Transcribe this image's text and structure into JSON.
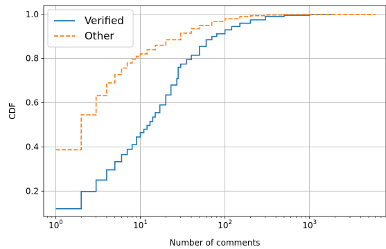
{
  "chart_data": {
    "type": "line",
    "xlabel": "Number of comments",
    "ylabel": "CDF",
    "xscale": "log",
    "xlim": [
      0.72,
      8000
    ],
    "ylim": [
      0.085,
      1.04
    ],
    "xticks": [
      {
        "value": 1,
        "base": "10",
        "exp": "0"
      },
      {
        "value": 10,
        "base": "10",
        "exp": "1"
      },
      {
        "value": 100,
        "base": "10",
        "exp": "2"
      },
      {
        "value": 1000,
        "base": "10",
        "exp": "3"
      }
    ],
    "yticks": [
      "0.2",
      "0.4",
      "0.6",
      "0.8",
      "1.0"
    ],
    "grid": true,
    "legend_position": "top-left",
    "series": [
      {
        "name": "Verified",
        "color": "#1f77b4",
        "style": "solid",
        "step": true,
        "x": [
          1,
          2,
          3,
          4,
          5,
          6,
          7,
          8,
          9,
          10,
          11,
          12,
          13,
          14,
          15,
          17,
          20,
          23,
          27,
          28,
          30,
          35,
          40,
          50,
          60,
          70,
          80,
          100,
          120,
          150,
          200,
          300,
          500,
          1000,
          2000
        ],
        "y": [
          0.12,
          0.198,
          0.25,
          0.296,
          0.333,
          0.365,
          0.389,
          0.41,
          0.445,
          0.465,
          0.48,
          0.497,
          0.515,
          0.535,
          0.555,
          0.59,
          0.635,
          0.68,
          0.71,
          0.76,
          0.775,
          0.795,
          0.815,
          0.855,
          0.885,
          0.9,
          0.912,
          0.93,
          0.945,
          0.96,
          0.975,
          0.99,
          0.996,
          1.0,
          1.0
        ]
      },
      {
        "name": "Other",
        "color": "#ff7f0e",
        "style": "dashed",
        "step": true,
        "x": [
          1,
          2,
          3,
          4,
          5,
          6,
          7,
          8,
          9,
          10,
          12,
          15,
          20,
          30,
          40,
          50,
          70,
          100,
          150,
          200,
          300,
          500,
          1000,
          2000,
          3000,
          6000
        ],
        "y": [
          0.387,
          0.545,
          0.632,
          0.69,
          0.727,
          0.757,
          0.78,
          0.797,
          0.81,
          0.821,
          0.84,
          0.86,
          0.885,
          0.915,
          0.935,
          0.95,
          0.968,
          0.98,
          0.99,
          0.994,
          0.997,
          0.999,
          1.0,
          1.0,
          1.0,
          1.0
        ]
      }
    ]
  }
}
